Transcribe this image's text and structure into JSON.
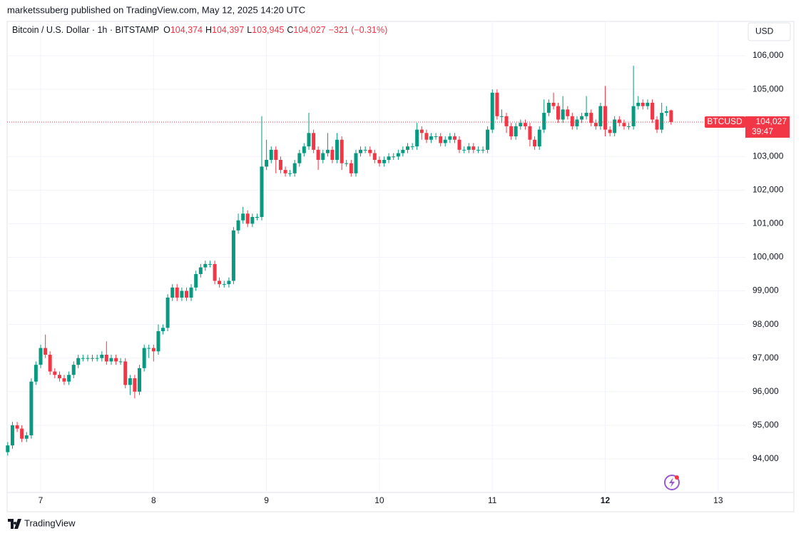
{
  "header": {
    "publisher": "marketssuberg published on TradingView.com, May 12, 2025 14:20 UTC",
    "symbol": "Bitcoin / U.S. Dollar · 1h · BITSTAMP",
    "ohlc": [
      {
        "key": "O",
        "value": "104,374"
      },
      {
        "key": "H",
        "value": "104,397"
      },
      {
        "key": "L",
        "value": "103,945"
      },
      {
        "key": "C",
        "value": "104,027"
      }
    ],
    "change": "−321 (−0.31%)",
    "currency": "USD"
  },
  "footer": {
    "brand": "TradingView"
  },
  "chart_data": {
    "type": "candlestick",
    "xlim": [
      6.703,
      13.241
    ],
    "xticks": [
      7,
      8,
      9,
      10,
      11,
      12,
      13
    ],
    "bold_xtick": 12,
    "ylim": [
      93000,
      107000
    ],
    "yticks": [
      {
        "value": 94000,
        "label": "94,000"
      },
      {
        "value": 95000,
        "label": "95,000"
      },
      {
        "value": 96000,
        "label": "96,000"
      },
      {
        "value": 97000,
        "label": "97,000"
      },
      {
        "value": 98000,
        "label": "98,000"
      },
      {
        "value": 99000,
        "label": "99,000"
      },
      {
        "value": 100000,
        "label": "100,000"
      },
      {
        "value": 101000,
        "label": "101,000"
      },
      {
        "value": 102000,
        "label": "102,000"
      },
      {
        "value": 103000,
        "label": "103,000"
      },
      {
        "value": 104000,
        "label": "104,000"
      },
      {
        "value": 105000,
        "label": "105,000"
      },
      {
        "value": 106000,
        "label": "106,000"
      }
    ],
    "grid": true,
    "up_color": "#089981",
    "down_color": "#f23645",
    "last_price": {
      "value": 104027,
      "label": "104,027",
      "symbol": "BTCUSD",
      "countdown": "39:47"
    },
    "series": [
      {
        "name": "BTCUSD",
        "x": [
          6.708,
          6.75,
          6.792,
          6.833,
          6.875,
          6.917,
          6.958,
          7,
          7.042,
          7.083,
          7.125,
          7.167,
          7.208,
          7.25,
          7.292,
          7.333,
          7.375,
          7.417,
          7.458,
          7.5,
          7.542,
          7.583,
          7.625,
          7.667,
          7.708,
          7.75,
          7.792,
          7.833,
          7.875,
          7.917,
          7.958,
          8,
          8.042,
          8.083,
          8.125,
          8.167,
          8.208,
          8.25,
          8.292,
          8.333,
          8.375,
          8.417,
          8.458,
          8.5,
          8.542,
          8.583,
          8.625,
          8.667,
          8.708,
          8.75,
          8.792,
          8.833,
          8.875,
          8.917,
          8.958,
          9,
          9.042,
          9.083,
          9.125,
          9.167,
          9.208,
          9.25,
          9.292,
          9.333,
          9.375,
          9.417,
          9.458,
          9.5,
          9.542,
          9.583,
          9.625,
          9.667,
          9.708,
          9.75,
          9.792,
          9.833,
          9.875,
          9.917,
          9.958,
          10,
          10.042,
          10.083,
          10.125,
          10.167,
          10.208,
          10.25,
          10.292,
          10.333,
          10.375,
          10.417,
          10.458,
          10.5,
          10.542,
          10.583,
          10.625,
          10.667,
          10.708,
          10.75,
          10.792,
          10.833,
          10.875,
          10.917,
          10.958,
          11,
          11.042,
          11.083,
          11.125,
          11.167,
          11.208,
          11.25,
          11.292,
          11.333,
          11.375,
          11.417,
          11.458,
          11.5,
          11.542,
          11.583,
          11.625,
          11.667,
          11.708,
          11.75,
          11.792,
          11.833,
          11.875,
          11.917,
          11.958,
          12,
          12.042,
          12.083,
          12.125,
          12.167,
          12.208,
          12.25,
          12.292,
          12.333,
          12.375,
          12.417,
          12.458,
          12.5,
          12.542,
          12.583
        ],
        "open": [
          94200,
          94400,
          95000,
          94900,
          94600,
          94700,
          96300,
          96800,
          97300,
          97100,
          96600,
          96500,
          96400,
          96300,
          96500,
          96800,
          97000,
          97000,
          97000,
          97000,
          97000,
          97100,
          96900,
          97000,
          96900,
          96900,
          96200,
          96400,
          96000,
          96700,
          97300,
          97300,
          97200,
          97800,
          97900,
          98800,
          99100,
          98800,
          99000,
          98800,
          99100,
          99500,
          99700,
          99800,
          99800,
          99300,
          99200,
          99200,
          99300,
          100800,
          101100,
          101300,
          101000,
          101200,
          101200,
          102700,
          102900,
          103200,
          102900,
          102600,
          102500,
          102500,
          102800,
          103100,
          103300,
          103700,
          103200,
          102900,
          103100,
          103200,
          102900,
          103500,
          102800,
          102800,
          102500,
          103100,
          103200,
          103200,
          103100,
          102900,
          102800,
          102900,
          103000,
          103000,
          103100,
          103200,
          103300,
          103300,
          103800,
          103700,
          103500,
          103600,
          103600,
          103400,
          103500,
          103600,
          103500,
          103200,
          103200,
          103300,
          103200,
          103200,
          103200,
          103800,
          104900,
          104200,
          104200,
          103900,
          103600,
          103900,
          104000,
          103900,
          103500,
          103300,
          103800,
          104300,
          104600,
          104500,
          104100,
          104400,
          104200,
          103900,
          104100,
          104200,
          104300,
          104000,
          103900,
          104500,
          103800,
          103700,
          104100,
          104000,
          103900,
          103900,
          104500,
          104600,
          104500,
          104600,
          104100,
          103800,
          104300,
          104374
        ],
        "high": [
          94500,
          95100,
          95100,
          95000,
          94800,
          96400,
          96900,
          97400,
          97700,
          97200,
          96700,
          96600,
          96500,
          96600,
          96900,
          97100,
          97100,
          97100,
          97100,
          97100,
          97200,
          97500,
          97100,
          97100,
          97000,
          97000,
          96500,
          96500,
          96800,
          97400,
          97400,
          97400,
          98000,
          98000,
          98900,
          99200,
          99200,
          99100,
          99100,
          99200,
          99600,
          99800,
          99900,
          99900,
          99900,
          99400,
          99300,
          99400,
          100900,
          101300,
          101500,
          101400,
          101300,
          101300,
          104200,
          103500,
          103300,
          103300,
          103000,
          102700,
          102600,
          102900,
          103200,
          103400,
          104300,
          103800,
          103300,
          103200,
          103700,
          103300,
          103700,
          103600,
          102900,
          102900,
          103200,
          103300,
          103300,
          103300,
          103200,
          103000,
          103000,
          103100,
          103100,
          103200,
          103300,
          103400,
          103400,
          104000,
          103900,
          103800,
          103700,
          103700,
          103700,
          103600,
          103700,
          103700,
          103600,
          103300,
          103400,
          103400,
          103300,
          103300,
          103900,
          105000,
          105000,
          104400,
          104300,
          104000,
          104000,
          104100,
          104100,
          104000,
          103600,
          103900,
          104700,
          104700,
          104900,
          104600,
          104800,
          104500,
          104300,
          104200,
          104300,
          104800,
          104400,
          104100,
          104600,
          105100,
          103900,
          104200,
          104200,
          104100,
          104000,
          105700,
          104800,
          104700,
          104700,
          104700,
          104200,
          104600,
          104500,
          104397
        ],
        "low": [
          94100,
          94300,
          94800,
          94500,
          94500,
          94600,
          96200,
          96700,
          97000,
          96500,
          96400,
          96300,
          96200,
          96200,
          96400,
          96700,
          96900,
          96900,
          96900,
          96900,
          96900,
          96800,
          96800,
          96800,
          96800,
          96100,
          95900,
          95800,
          95900,
          96600,
          97000,
          96900,
          97100,
          97700,
          97800,
          98700,
          98700,
          98700,
          98700,
          98700,
          99000,
          99400,
          99600,
          99700,
          99200,
          99100,
          99100,
          99100,
          99200,
          100700,
          101000,
          100900,
          100900,
          101100,
          101100,
          102600,
          102800,
          102500,
          102500,
          102400,
          102400,
          102400,
          102700,
          103000,
          103200,
          103100,
          102600,
          102800,
          103000,
          102800,
          102800,
          102600,
          102700,
          102400,
          102400,
          103000,
          103100,
          103000,
          102800,
          102700,
          102700,
          102800,
          102900,
          102900,
          103000,
          103100,
          103200,
          103200,
          103500,
          103400,
          103400,
          103500,
          103300,
          103300,
          103400,
          103400,
          103100,
          103100,
          103100,
          103100,
          103100,
          103100,
          103100,
          103700,
          104100,
          104000,
          103700,
          103500,
          103500,
          103800,
          103800,
          103300,
          103200,
          103200,
          103700,
          104200,
          104400,
          104000,
          104000,
          104100,
          103800,
          103800,
          104000,
          104100,
          103900,
          103800,
          103800,
          103600,
          103600,
          103600,
          103900,
          103800,
          103800,
          103800,
          104400,
          104400,
          104400,
          104000,
          103700,
          103700,
          104200,
          103945
        ],
        "close": [
          94400,
          95000,
          94900,
          94600,
          94700,
          96300,
          96800,
          97300,
          97100,
          96600,
          96500,
          96400,
          96300,
          96500,
          96800,
          97000,
          97000,
          97000,
          97000,
          97000,
          97100,
          96900,
          97000,
          96900,
          96900,
          96200,
          96400,
          96000,
          96700,
          97300,
          97300,
          97200,
          97800,
          97900,
          98800,
          99100,
          98800,
          99000,
          98800,
          99100,
          99500,
          99700,
          99800,
          99800,
          99300,
          99200,
          99200,
          99300,
          100800,
          101100,
          101300,
          101000,
          101200,
          101200,
          102700,
          102900,
          103200,
          102900,
          102600,
          102500,
          102500,
          102800,
          103100,
          103300,
          103700,
          103200,
          102900,
          103100,
          103200,
          102900,
          103500,
          102800,
          102800,
          102500,
          103100,
          103200,
          103200,
          103100,
          102900,
          102800,
          102900,
          103000,
          103000,
          103100,
          103200,
          103300,
          103300,
          103800,
          103700,
          103500,
          103600,
          103600,
          103400,
          103500,
          103600,
          103500,
          103200,
          103200,
          103300,
          103200,
          103200,
          103200,
          103800,
          104900,
          104200,
          104200,
          103900,
          103600,
          103900,
          104000,
          103900,
          103500,
          103300,
          103800,
          104300,
          104600,
          104500,
          104100,
          104400,
          104200,
          103900,
          104100,
          104200,
          104300,
          104000,
          103900,
          104500,
          103800,
          103700,
          104100,
          104000,
          103900,
          103900,
          104500,
          104600,
          104500,
          104600,
          104100,
          103800,
          104300,
          104348,
          104027
        ]
      }
    ]
  }
}
